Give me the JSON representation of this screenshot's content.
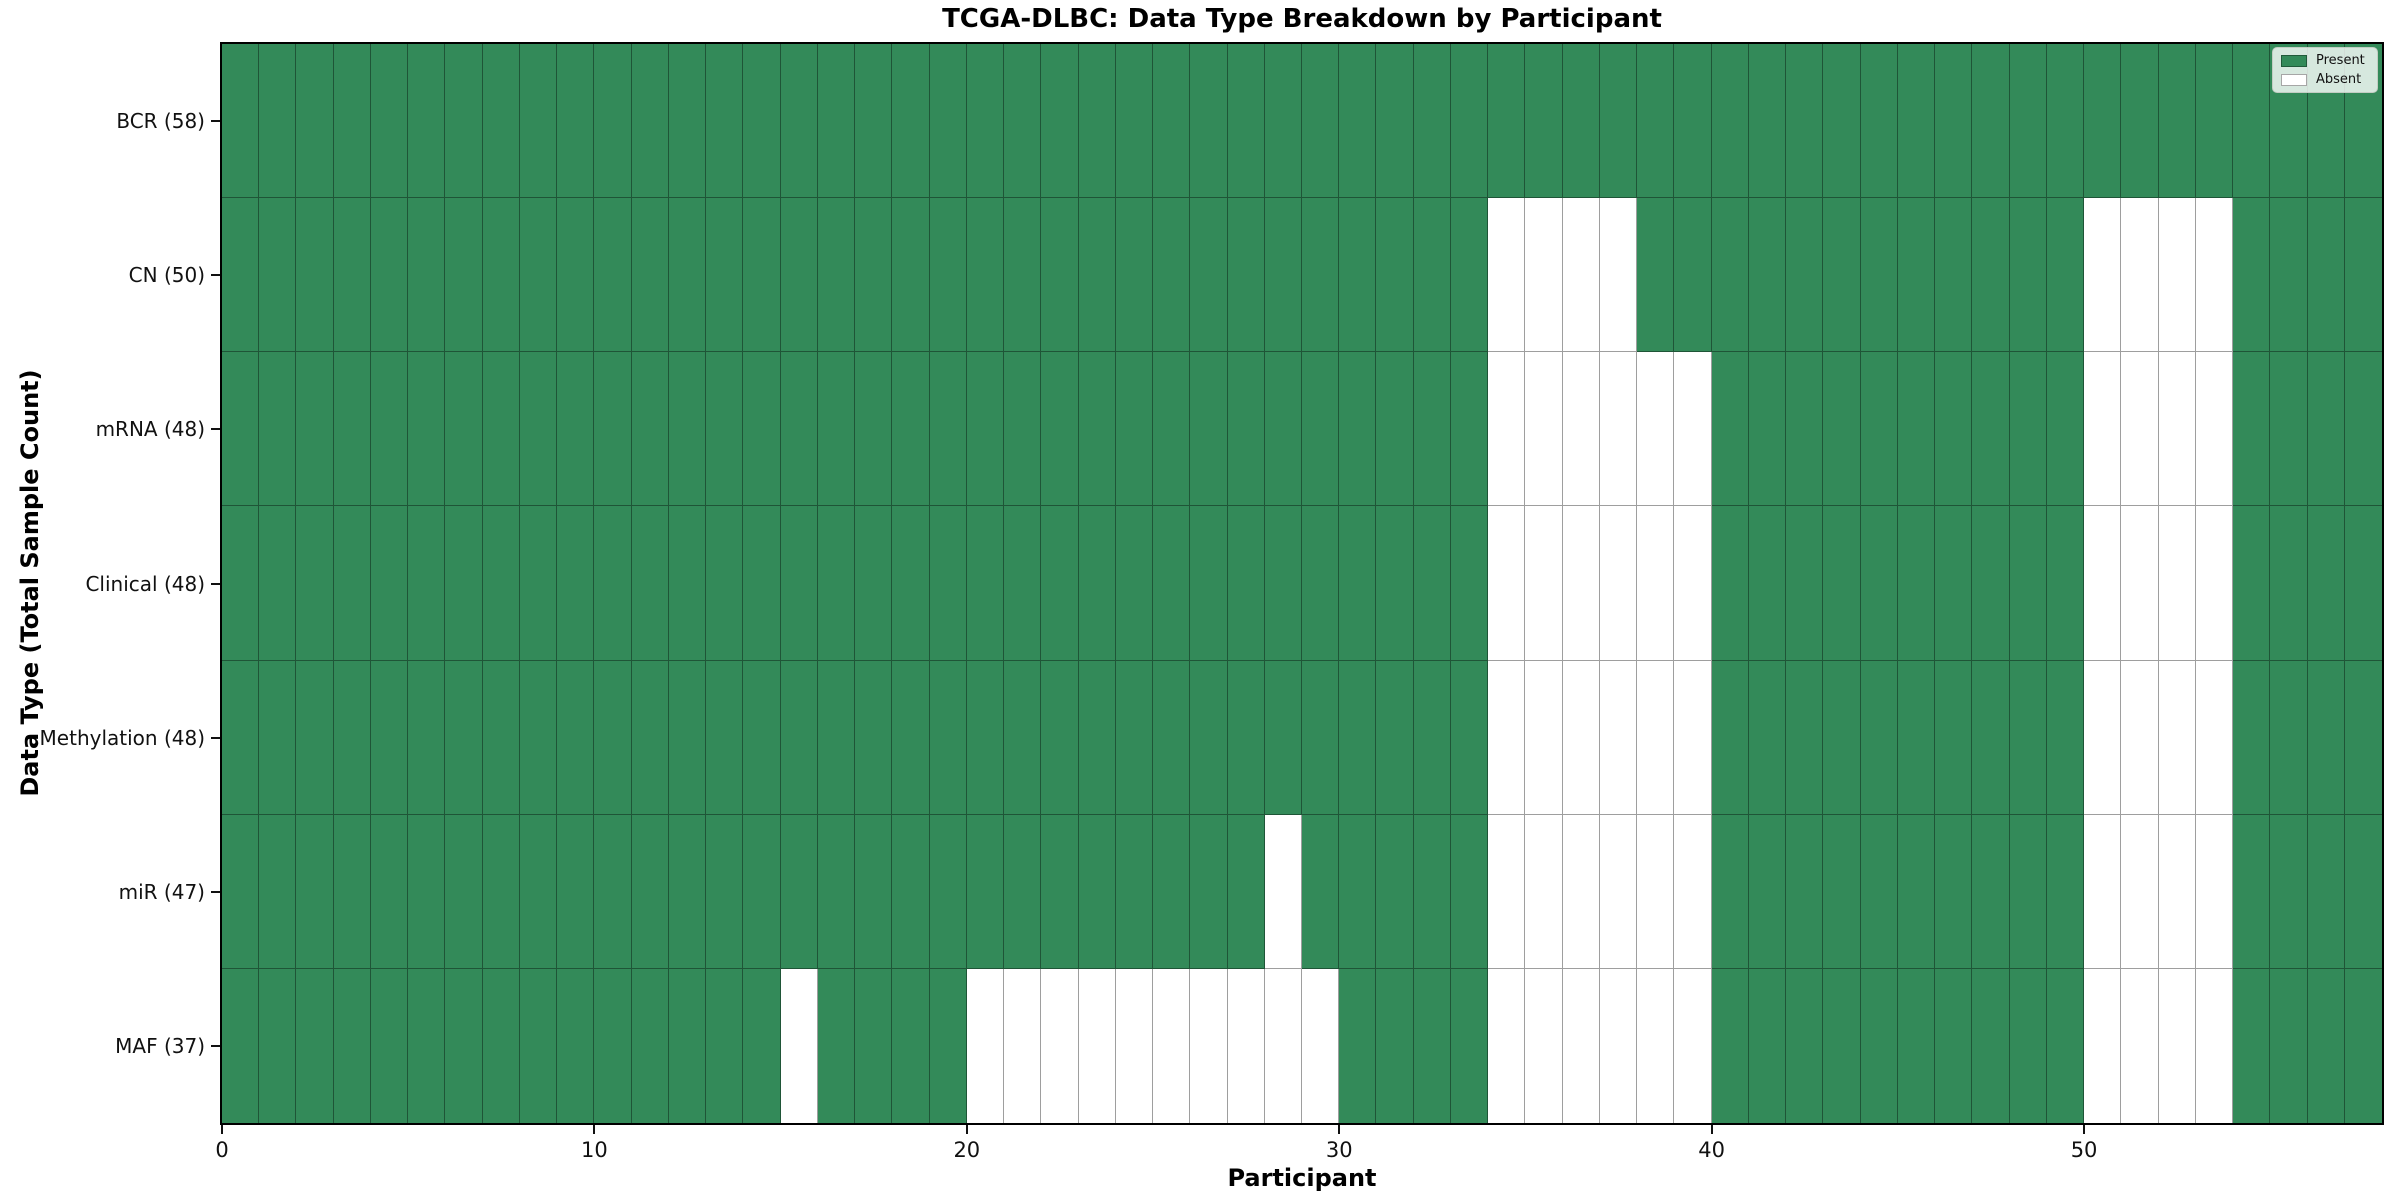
{
  "chart_data": {
    "type": "heatmap",
    "title": "TCGA-DLBC: Data Type Breakdown by Participant",
    "xlabel": "Participant",
    "ylabel": "Data Type (Total Sample Count)",
    "n_participants": 58,
    "x_ticks": [
      0,
      10,
      20,
      30,
      40,
      50
    ],
    "x_range": [
      0,
      58
    ],
    "grid": true,
    "legend_position": "upper right",
    "colors": {
      "present": "#338a59",
      "absent": "#ffffff"
    },
    "legend": [
      {
        "label": "Present",
        "color": "#338a59"
      },
      {
        "label": "Absent",
        "color": "#ffffff"
      }
    ],
    "rows": [
      {
        "name": "BCR",
        "label": "BCR (58)",
        "total": 58,
        "absent": []
      },
      {
        "name": "CN",
        "label": "CN (50)",
        "total": 50,
        "absent": [
          34,
          35,
          36,
          37,
          50,
          51,
          52,
          53
        ]
      },
      {
        "name": "mRNA",
        "label": "mRNA (48)",
        "total": 48,
        "absent": [
          34,
          35,
          36,
          37,
          38,
          39,
          50,
          51,
          52,
          53
        ]
      },
      {
        "name": "Clinical",
        "label": "Clinical (48)",
        "total": 48,
        "absent": [
          34,
          35,
          36,
          37,
          38,
          39,
          50,
          51,
          52,
          53
        ]
      },
      {
        "name": "Methylation",
        "label": "Methylation (48)",
        "total": 48,
        "absent": [
          34,
          35,
          36,
          37,
          38,
          39,
          50,
          51,
          52,
          53
        ]
      },
      {
        "name": "miR",
        "label": "miR (47)",
        "total": 47,
        "absent": [
          28,
          34,
          35,
          36,
          37,
          38,
          39,
          50,
          51,
          52,
          53
        ]
      },
      {
        "name": "MAF",
        "label": "MAF (37)",
        "total": 37,
        "absent": [
          15,
          20,
          21,
          22,
          23,
          24,
          25,
          26,
          27,
          28,
          29,
          34,
          35,
          36,
          37,
          38,
          39,
          50,
          51,
          52,
          53
        ]
      }
    ]
  }
}
